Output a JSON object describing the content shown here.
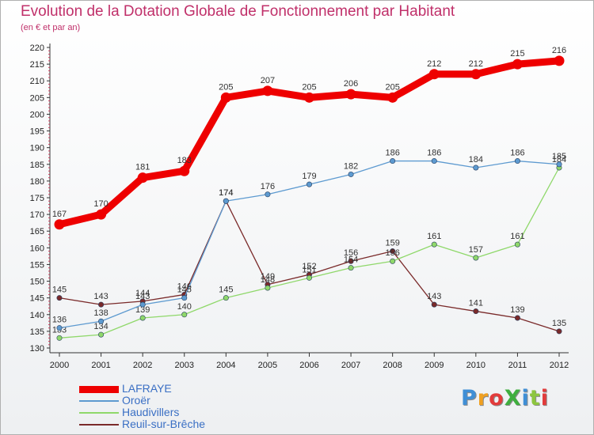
{
  "title": "Evolution de la Dotation Globale de Fonctionnement par Habitant",
  "subtitle": "(en € et par an)",
  "brand": {
    "text": "ProXiti",
    "letter_colors": [
      "#3f8fd6",
      "#f0a020",
      "#e23b3b",
      "#3fae3f",
      "#3f8fd6",
      "#8dc63f",
      "#e23b3b"
    ]
  },
  "chart_data": {
    "type": "line",
    "title": "Evolution de la Dotation Globale de Fonctionnement par Habitant",
    "subtitle": "(en € et par an)",
    "xlabel": "",
    "ylabel": "",
    "x": [
      "2000",
      "2001",
      "2002",
      "2003",
      "2004",
      "2005",
      "2006",
      "2007",
      "2008",
      "2009",
      "2010",
      "2011",
      "2012"
    ],
    "ylim": [
      130,
      220
    ],
    "ytick_step": 5,
    "grid": false,
    "legend_position": "bottom-left",
    "series": [
      {
        "name": "LAFRAYE",
        "color": "#ee0000",
        "values": [
          167,
          170,
          181,
          183,
          205,
          207,
          205,
          206,
          205,
          212,
          212,
          215,
          216
        ],
        "labels": [
          "167",
          "170",
          "181",
          "183",
          "205",
          "207",
          "205",
          "206",
          "205",
          "212",
          "212",
          "215",
          "216"
        ]
      },
      {
        "name": "Oroër",
        "color": "#5d9ad0",
        "values": [
          136,
          138,
          143,
          145,
          174,
          176,
          179,
          182,
          186,
          186,
          184,
          186,
          185
        ],
        "labels": [
          "136",
          "138",
          "143",
          "145",
          "174",
          "176",
          "179",
          "182",
          "186",
          "186",
          "184",
          "186",
          "185"
        ]
      },
      {
        "name": "Haudivillers",
        "color": "#8fd86a",
        "values": [
          133,
          134,
          139,
          140,
          145,
          148,
          151,
          154,
          156,
          161,
          157,
          161,
          184
        ],
        "labels": [
          "133",
          "134",
          "139",
          "140",
          "145",
          "148",
          "151",
          "154",
          "156",
          "161",
          "157",
          "161",
          "184"
        ]
      },
      {
        "name": "Reuil-sur-Brêche",
        "color": "#7a2a2a",
        "values": [
          145,
          143,
          144,
          146,
          174,
          149,
          152,
          156,
          159,
          143,
          141,
          139,
          135
        ],
        "labels": [
          "145",
          "143",
          "144",
          "146",
          "174",
          "149",
          "152",
          "156",
          "159",
          "143",
          "141",
          "139",
          "135"
        ]
      }
    ]
  }
}
